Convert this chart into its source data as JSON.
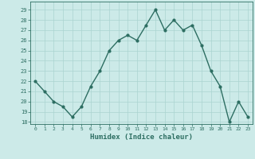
{
  "x": [
    0,
    1,
    2,
    3,
    4,
    5,
    6,
    7,
    8,
    9,
    10,
    11,
    12,
    13,
    14,
    15,
    16,
    17,
    18,
    19,
    20,
    21,
    22,
    23
  ],
  "y": [
    22,
    21,
    20,
    19.5,
    18.5,
    19.5,
    21.5,
    23,
    25,
    26,
    26.5,
    26,
    27.5,
    29,
    27,
    28,
    27,
    27.5,
    25.5,
    23,
    21.5,
    18,
    20,
    18.5
  ],
  "line_color": "#2d6e62",
  "marker": "o",
  "marker_size": 2.0,
  "bg_color": "#cceae8",
  "grid_color": "#aad4d0",
  "xlabel": "Humidex (Indice chaleur)",
  "ylabel_ticks": [
    18,
    19,
    20,
    21,
    22,
    23,
    24,
    25,
    26,
    27,
    28,
    29
  ],
  "ylim": [
    17.8,
    29.8
  ],
  "xlim": [
    -0.5,
    23.5
  ],
  "xticks": [
    0,
    1,
    2,
    3,
    4,
    5,
    6,
    7,
    8,
    9,
    10,
    11,
    12,
    13,
    14,
    15,
    16,
    17,
    18,
    19,
    20,
    21,
    22,
    23
  ],
  "tick_color": "#2d6e62",
  "tick_label_color": "#2d6e62",
  "xlabel_color": "#2d6e62",
  "linewidth": 1.0
}
